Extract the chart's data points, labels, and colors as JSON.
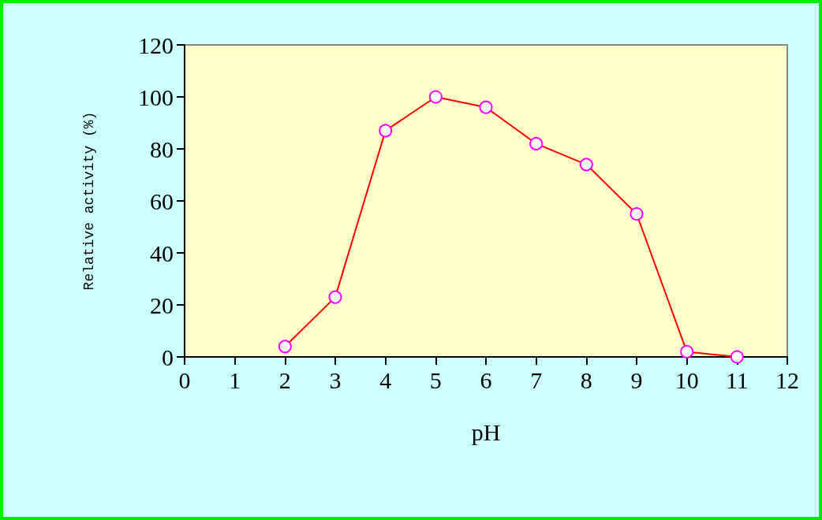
{
  "chart_data": {
    "type": "line",
    "xlabel": "pH",
    "ylabel": "Relative activity (%)",
    "x": [
      2,
      3,
      4,
      5,
      6,
      7,
      8,
      9,
      10,
      11
    ],
    "series": [
      {
        "color": "#ff0000",
        "values": [
          4,
          23,
          87,
          100,
          96,
          82,
          74,
          55,
          2,
          0
        ]
      }
    ],
    "xlim": [
      0,
      12
    ],
    "xticks": [
      0,
      1,
      2,
      3,
      4,
      5,
      6,
      7,
      8,
      9,
      10,
      11,
      12
    ],
    "ylim": [
      0,
      120
    ],
    "yticks": [
      0,
      20,
      40,
      60,
      80,
      100,
      120
    ],
    "grid": false,
    "marker": "circle",
    "line_style": "solid"
  }
}
